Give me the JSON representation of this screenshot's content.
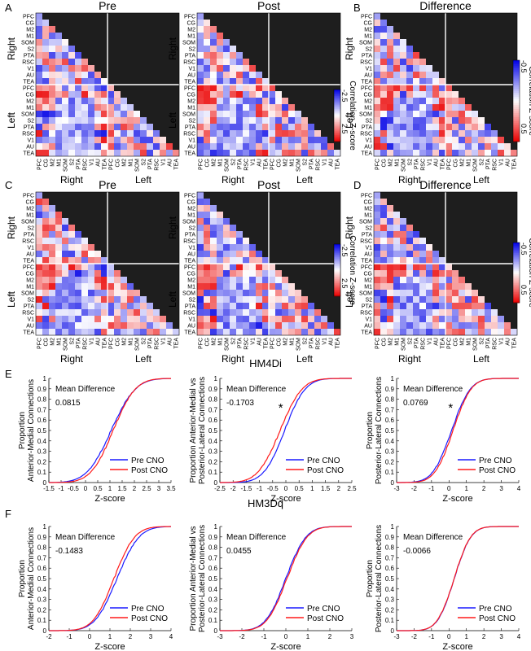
{
  "regions": [
    "PFC",
    "CG",
    "M2",
    "M1",
    "SOM",
    "S2",
    "PTA",
    "RSC",
    "V1",
    "AU",
    "TEA"
  ],
  "hemispheres": {
    "right": "Right",
    "left": "Left"
  },
  "colorbars": {
    "label": "Correlation Z-score",
    "main_min": "-2.5",
    "main_max": "2.5",
    "diff_min": "-0.5",
    "diff_max": "0.5"
  },
  "panel_letters": {
    "A": "A",
    "B": "B",
    "C": "C",
    "D": "D",
    "E": "E",
    "F": "F"
  },
  "matrix_titles": {
    "pre": "Pre",
    "post": "Post",
    "diff": "Difference"
  },
  "section_titles": {
    "hm4di": "HM4Di",
    "hm3dq": "HM3Dq"
  },
  "cdf_common": {
    "xlabel": "Z-score",
    "legend_pre": "Pre CNO",
    "legend_post": "Post CNO",
    "mean_diff_label": "Mean Difference",
    "colors": {
      "pre": "#1a1aff",
      "post": "#ff1a1a"
    }
  },
  "chart_data": [
    {
      "type": "heatmap",
      "id": "A-pre",
      "title": "Pre",
      "vmin": -2.5,
      "vmax": 2.5,
      "seed": 11
    },
    {
      "type": "heatmap",
      "id": "A-post",
      "title": "Post",
      "vmin": -2.5,
      "vmax": 2.5,
      "seed": 23
    },
    {
      "type": "heatmap",
      "id": "B-diff",
      "title": "Difference",
      "vmin": -0.5,
      "vmax": 0.5,
      "seed": 37
    },
    {
      "type": "heatmap",
      "id": "C-pre",
      "title": "Pre",
      "vmin": -2.5,
      "vmax": 2.5,
      "seed": 41
    },
    {
      "type": "heatmap",
      "id": "C-post",
      "title": "Post",
      "vmin": -2.5,
      "vmax": 2.5,
      "seed": 53
    },
    {
      "type": "heatmap",
      "id": "D-diff",
      "title": "Difference",
      "vmin": -0.5,
      "vmax": 0.5,
      "seed": 67
    },
    {
      "type": "line",
      "id": "E1",
      "ylabel": [
        "Proportion",
        "Anterior-Medial Connections"
      ],
      "mean_diff": "0.0815",
      "star": false,
      "xlim": [
        -1.5,
        3.5
      ],
      "ylim": [
        0,
        1
      ],
      "xticks": [
        "-1.5",
        "-1",
        "-0.5",
        "0",
        "0.5",
        "1",
        "1.5",
        "2",
        "2.5",
        "3",
        "3.5"
      ],
      "yticks": [
        "0",
        "0.1",
        "0.2",
        "0.3",
        "0.4",
        "0.5",
        "0.6",
        "0.7",
        "0.8",
        "0.9",
        "1"
      ],
      "pre": {
        "mu": 1.05,
        "sd": 0.78
      },
      "post": {
        "mu": 1.13,
        "sd": 0.72
      }
    },
    {
      "type": "line",
      "id": "E2",
      "ylabel": [
        "Proportion Anterior-Medial vs",
        "Posterior-Lateral Connections"
      ],
      "mean_diff": "-0.1703",
      "star": true,
      "xlim": [
        -2.5,
        2.5
      ],
      "ylim": [
        0,
        1
      ],
      "xticks": [
        "-2.5",
        "-2",
        "-1.5",
        "-1",
        "-0.5",
        "0",
        "0.5",
        "1",
        "1.5",
        "2",
        "2.5"
      ],
      "yticks": [
        "0",
        "0.1",
        "0.2",
        "0.3",
        "0.4",
        "0.5",
        "0.6",
        "0.7",
        "0.8",
        "0.9",
        "1"
      ],
      "pre": {
        "mu": -0.05,
        "sd": 0.62
      },
      "post": {
        "mu": -0.22,
        "sd": 0.66
      }
    },
    {
      "type": "line",
      "id": "E3",
      "ylabel": [
        "Proportion",
        "Posterior-Lateral Connections"
      ],
      "mean_diff": "0.0769",
      "star": true,
      "xlim": [
        -3,
        4
      ],
      "ylim": [
        0,
        1
      ],
      "xticks": [
        "-3",
        "-2",
        "-1",
        "0",
        "1",
        "2",
        "3",
        "4"
      ],
      "yticks": [
        "0",
        "0.1",
        "0.2",
        "0.3",
        "0.4",
        "0.5",
        "0.6",
        "0.7",
        "0.8",
        "0.9",
        "1"
      ],
      "pre": {
        "mu": 0.15,
        "sd": 0.85
      },
      "post": {
        "mu": 0.23,
        "sd": 0.82
      }
    },
    {
      "type": "line",
      "id": "F1",
      "ylabel": [
        "Proportion",
        "Anterior-Medial Connections"
      ],
      "mean_diff": "-0.1483",
      "star": false,
      "xlim": [
        -2,
        4
      ],
      "ylim": [
        0,
        1
      ],
      "xticks": [
        "-2",
        "-1",
        "0",
        "1",
        "2",
        "3",
        "4"
      ],
      "yticks": [
        "0",
        "0.1",
        "0.2",
        "0.3",
        "0.4",
        "0.5",
        "0.6",
        "0.7",
        "0.8",
        "0.9",
        "1"
      ],
      "pre": {
        "mu": 1.35,
        "sd": 0.85
      },
      "post": {
        "mu": 1.2,
        "sd": 0.8
      }
    },
    {
      "type": "line",
      "id": "F2",
      "ylabel": [
        "Proportion Anterior-Medial vs",
        "Posterior-Lateral Connections"
      ],
      "mean_diff": "0.0455",
      "star": false,
      "xlim": [
        -3,
        3
      ],
      "ylim": [
        0,
        1
      ],
      "xticks": [
        "-3",
        "-2",
        "-1",
        "0",
        "1",
        "2",
        "3"
      ],
      "yticks": [
        "0",
        "0.1",
        "0.2",
        "0.3",
        "0.4",
        "0.5",
        "0.6",
        "0.7",
        "0.8",
        "0.9",
        "1"
      ],
      "pre": {
        "mu": 0.0,
        "sd": 0.72
      },
      "post": {
        "mu": 0.05,
        "sd": 0.72
      }
    },
    {
      "type": "line",
      "id": "F3",
      "ylabel": [
        "Proportion",
        "Posterior-Lateral Connections"
      ],
      "mean_diff": "-0.0066",
      "star": false,
      "xlim": [
        -3,
        4
      ],
      "ylim": [
        0,
        1
      ],
      "xticks": [
        "-3",
        "-2",
        "-1",
        "0",
        "1",
        "2",
        "3",
        "4"
      ],
      "yticks": [
        "0",
        "0.1",
        "0.2",
        "0.3",
        "0.4",
        "0.5",
        "0.6",
        "0.7",
        "0.8",
        "0.9",
        "1"
      ],
      "pre": {
        "mu": 0.3,
        "sd": 0.75
      },
      "post": {
        "mu": 0.29,
        "sd": 0.75
      }
    }
  ]
}
